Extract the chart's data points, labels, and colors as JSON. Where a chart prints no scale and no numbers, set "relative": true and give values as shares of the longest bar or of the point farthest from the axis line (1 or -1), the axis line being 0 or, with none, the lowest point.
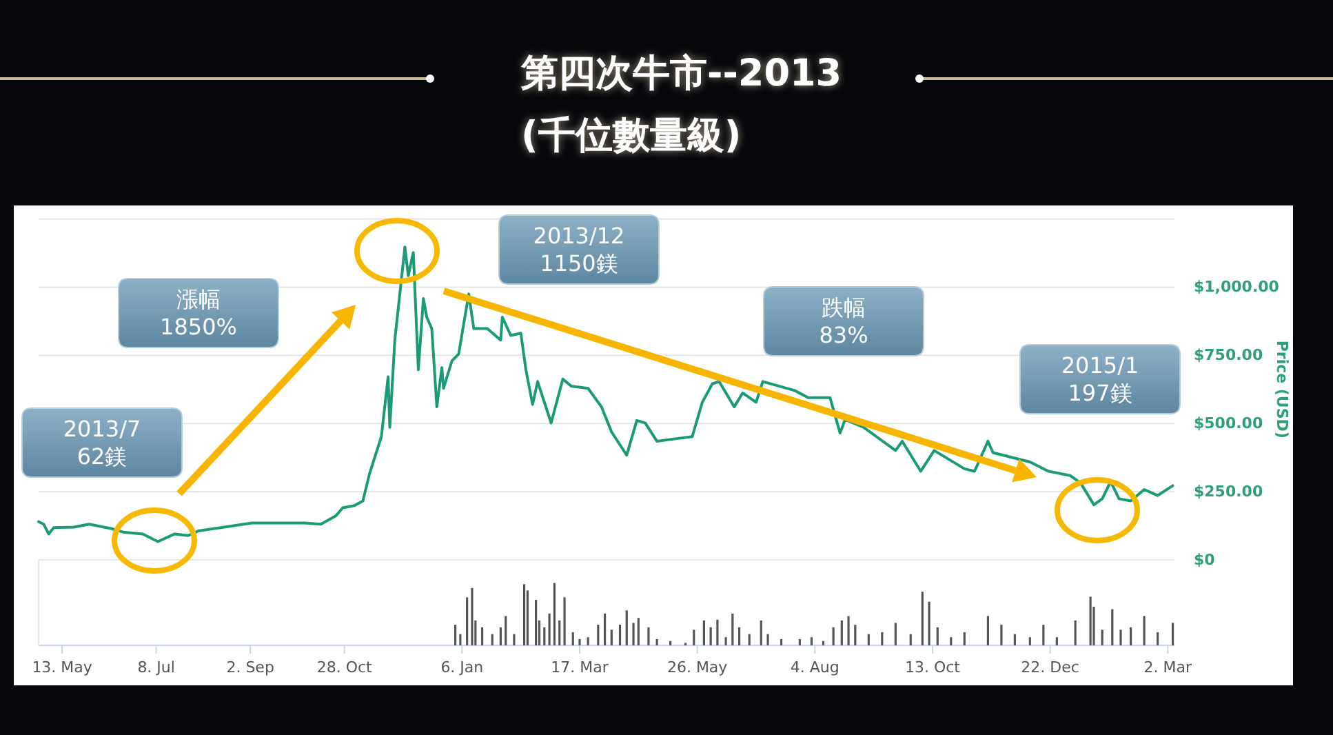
{
  "chart_data": [
    {
      "type": "line",
      "title": "第四次牛市--2013",
      "subtitle": "(千位數量級)",
      "ylabel": "Price (USD)",
      "color": "#1a9a76",
      "line_style": "solid",
      "grid": "y",
      "tick_labels": "y",
      "xlim": [
        "2013-04-29",
        "2015-03-06"
      ],
      "ylim": [
        0,
        1250
      ],
      "yticks": [
        {
          "value": 0,
          "label": "$0"
        },
        {
          "value": 250,
          "label": "$250.00"
        },
        {
          "value": 500,
          "label": "$500.00"
        },
        {
          "value": 750,
          "label": "$750.00"
        },
        {
          "value": 1000,
          "label": "$1,000.00"
        },
        {
          "value": 1250,
          "label": null
        }
      ],
      "x": [
        "2013-04-29",
        "2013-05-02",
        "2013-05-05",
        "2013-05-08",
        "2013-05-20",
        "2013-05-29",
        "2013-06-11",
        "2013-06-19",
        "2013-06-30",
        "2013-07-09",
        "2013-07-19",
        "2013-07-27",
        "2013-08-02",
        "2013-09-03",
        "2013-10-04",
        "2013-10-14",
        "2013-10-23",
        "2013-10-27",
        "2013-11-03",
        "2013-11-08",
        "2013-11-12",
        "2013-11-19",
        "2013-11-23",
        "2013-11-24",
        "2013-11-27",
        "2013-12-03",
        "2013-12-05",
        "2013-12-08",
        "2013-12-11",
        "2013-12-14",
        "2013-12-16",
        "2013-12-19",
        "2013-12-22",
        "2013-12-25",
        "2013-12-26",
        "2013-12-31",
        "2014-01-04",
        "2014-01-10",
        "2014-01-13",
        "2014-01-21",
        "2014-01-29",
        "2014-01-30",
        "2014-02-04",
        "2014-02-10",
        "2014-02-13",
        "2014-02-17",
        "2014-02-20",
        "2014-02-28",
        "2014-03-07",
        "2014-03-12",
        "2014-03-22",
        "2014-03-30",
        "2014-04-05",
        "2014-04-14",
        "2014-04-20",
        "2014-04-25",
        "2014-05-02",
        "2014-05-13",
        "2014-05-23",
        "2014-05-29",
        "2014-06-04",
        "2014-06-08",
        "2014-06-17",
        "2014-06-22",
        "2014-06-30",
        "2014-07-04",
        "2014-07-23",
        "2014-07-31",
        "2014-08-13",
        "2014-08-19",
        "2014-08-22",
        "2014-09-02",
        "2014-09-21",
        "2014-09-25",
        "2014-10-06",
        "2014-10-14",
        "2014-11-01",
        "2014-11-07",
        "2014-11-15",
        "2014-11-18",
        "2014-11-29",
        "2014-12-10",
        "2014-12-21",
        "2015-01-03",
        "2015-01-09",
        "2015-01-14",
        "2015-01-17",
        "2015-01-22",
        "2015-01-27",
        "2015-02-01",
        "2015-02-08",
        "2015-02-16",
        "2015-02-24",
        "2015-03-05"
      ],
      "values": [
        140,
        131,
        95,
        118,
        120,
        131,
        115,
        101,
        95,
        67,
        95,
        89,
        106,
        135,
        135,
        131,
        162,
        191,
        199,
        216,
        317,
        452,
        671,
        486,
        806,
        1147,
        1042,
        1127,
        697,
        958,
        890,
        848,
        561,
        705,
        629,
        730,
        755,
        975,
        848,
        848,
        806,
        890,
        823,
        831,
        697,
        570,
        654,
        502,
        663,
        637,
        629,
        561,
        469,
        384,
        511,
        502,
        435,
        444,
        452,
        578,
        646,
        654,
        561,
        612,
        578,
        654,
        621,
        595,
        595,
        465,
        515,
        486,
        401,
        435,
        325,
        401,
        334,
        325,
        435,
        393,
        376,
        359,
        325,
        309,
        283,
        233,
        202,
        224,
        287,
        224,
        216,
        258,
        236,
        272
      ],
      "annotations": [
        "2013/7\n62鎂",
        "漲幅\n1850%",
        "2013/12\n1150鎂",
        "跌幅\n83%",
        "2015/1\n197鎂"
      ]
    },
    {
      "type": "bar",
      "relative": true,
      "color": "#555555",
      "tick_labels": "x",
      "xlim": [
        "2013-04-29",
        "2015-03-06"
      ],
      "xticks": [
        {
          "value": "2013-05-13",
          "label": "13. May"
        },
        {
          "value": "2013-07-08",
          "label": "8. Jul"
        },
        {
          "value": "2013-09-02",
          "label": "2. Sep"
        },
        {
          "value": "2013-10-28",
          "label": "28. Oct"
        },
        {
          "value": "2014-01-06",
          "label": "6. Jan"
        },
        {
          "value": "2014-03-17",
          "label": "17. Mar"
        },
        {
          "value": "2014-05-26",
          "label": "26. May"
        },
        {
          "value": "2014-08-04",
          "label": "4. Aug"
        },
        {
          "value": "2014-10-13",
          "label": "13. Oct"
        },
        {
          "value": "2014-12-22",
          "label": "22. Dec"
        },
        {
          "value": "2015-03-02",
          "label": "2. Mar"
        }
      ],
      "x": [
        "2014-01-02",
        "2014-01-05",
        "2014-01-09",
        "2014-01-12",
        "2014-01-14",
        "2014-01-18",
        "2014-01-24",
        "2014-01-29",
        "2014-02-01",
        "2014-02-06",
        "2014-02-12",
        "2014-02-14",
        "2014-02-19",
        "2014-02-21",
        "2014-02-24",
        "2014-02-27",
        "2014-03-02",
        "2014-03-05",
        "2014-03-08",
        "2014-03-13",
        "2014-03-17",
        "2014-03-22",
        "2014-03-28",
        "2014-04-01",
        "2014-04-05",
        "2014-04-10",
        "2014-04-14",
        "2014-04-18",
        "2014-04-21",
        "2014-04-27",
        "2014-05-02",
        "2014-05-10",
        "2014-05-19",
        "2014-05-24",
        "2014-05-30",
        "2014-06-03",
        "2014-06-07",
        "2014-06-12",
        "2014-06-16",
        "2014-06-20",
        "2014-06-26",
        "2014-07-03",
        "2014-07-07",
        "2014-07-15",
        "2014-07-26",
        "2014-08-02",
        "2014-08-09",
        "2014-08-15",
        "2014-08-20",
        "2014-08-24",
        "2014-08-28",
        "2014-09-05",
        "2014-09-13",
        "2014-09-21",
        "2014-09-30",
        "2014-10-07",
        "2014-10-11",
        "2014-10-16",
        "2014-10-24",
        "2014-11-01",
        "2014-11-15",
        "2014-11-23",
        "2014-12-01",
        "2014-12-10",
        "2014-12-18",
        "2014-12-26",
        "2015-01-06",
        "2015-01-15",
        "2015-01-17",
        "2015-01-22",
        "2015-01-28",
        "2015-02-02",
        "2015-02-08",
        "2015-02-16",
        "2015-02-24",
        "2015-03-05"
      ],
      "values": [
        0.33,
        0.18,
        0.77,
        0.92,
        0.4,
        0.29,
        0.18,
        0.29,
        0.47,
        0.18,
        0.98,
        0.88,
        0.73,
        0.4,
        0.29,
        0.51,
        1,
        0.4,
        0.77,
        0.21,
        0.1,
        0.13,
        0.33,
        0.51,
        0.25,
        0.33,
        0.56,
        0.36,
        0.44,
        0.29,
        0.1,
        0.07,
        0.04,
        0.25,
        0.4,
        0.29,
        0.41,
        0.13,
        0.51,
        0.29,
        0.18,
        0.4,
        0.18,
        0.1,
        0.1,
        0.13,
        0.07,
        0.29,
        0.4,
        0.47,
        0.33,
        0.18,
        0.21,
        0.36,
        0.18,
        0.86,
        0.7,
        0.29,
        0.13,
        0.21,
        0.47,
        0.33,
        0.18,
        0.13,
        0.33,
        0.13,
        0.4,
        0.78,
        0.62,
        0.25,
        0.58,
        0.25,
        0.29,
        0.47,
        0.21,
        0.36
      ]
    }
  ]
}
